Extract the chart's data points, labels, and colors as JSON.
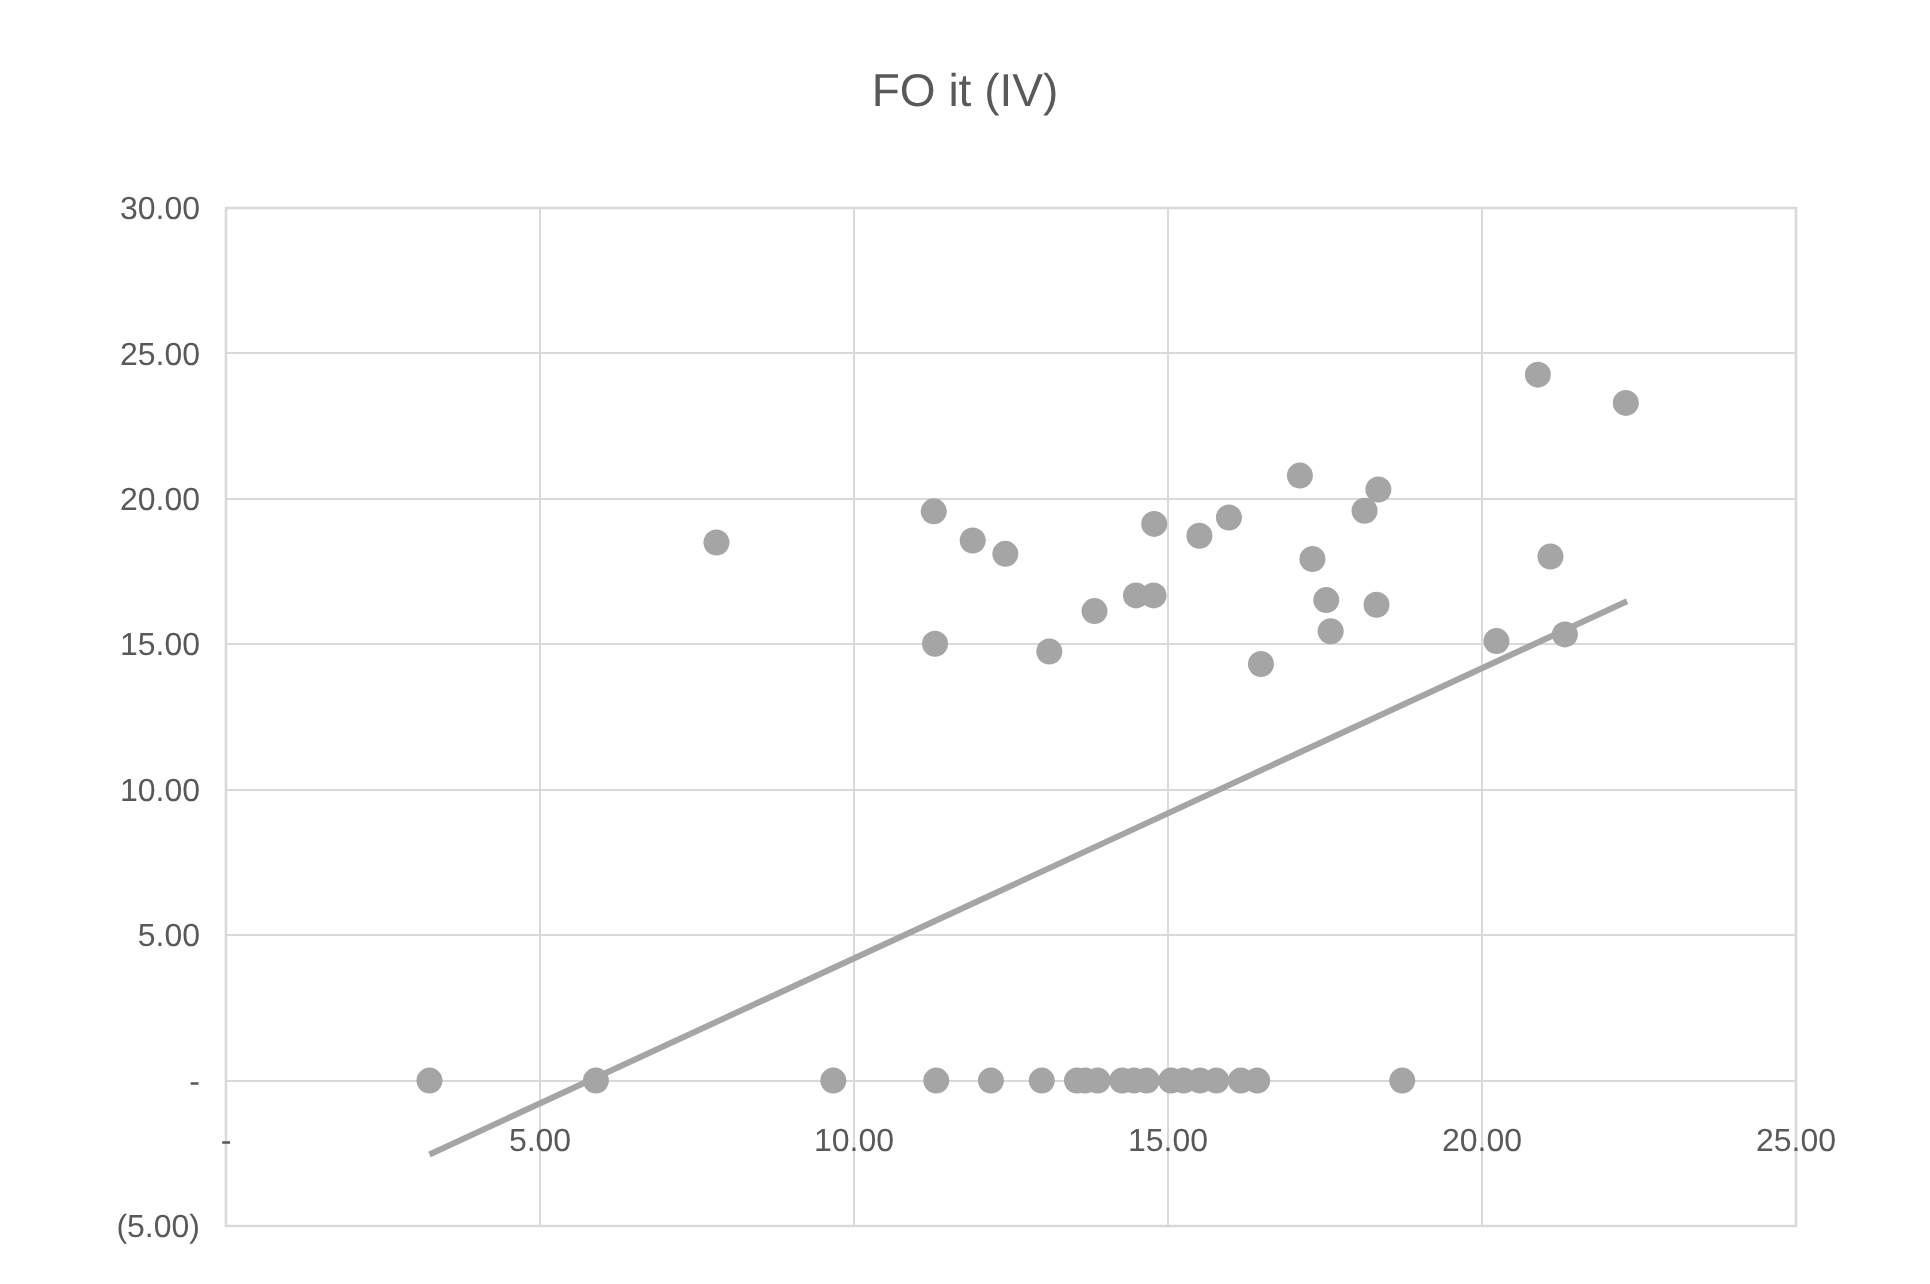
{
  "chart_data": {
    "type": "scatter",
    "title": "FO it (IV)",
    "xlim": [
      0,
      25
    ],
    "ylim": [
      -5,
      30
    ],
    "xticks": [
      {
        "value": 0,
        "label": "-"
      },
      {
        "value": 5,
        "label": "5.00"
      },
      {
        "value": 10,
        "label": "10.00"
      },
      {
        "value": 15,
        "label": "15.00"
      },
      {
        "value": 20,
        "label": "20.00"
      },
      {
        "value": 25,
        "label": "25.00"
      }
    ],
    "yticks": [
      {
        "value": -5,
        "label": "(5.00)"
      },
      {
        "value": 0,
        "label": "-"
      },
      {
        "value": 5,
        "label": "5.00"
      },
      {
        "value": 10,
        "label": "10.00"
      },
      {
        "value": 15,
        "label": "15.00"
      },
      {
        "value": 20,
        "label": "20.00"
      },
      {
        "value": 25,
        "label": "25.00"
      },
      {
        "value": 30,
        "label": "30.00"
      }
    ],
    "grid": true,
    "marker": "circle",
    "series": [
      {
        "color": "#a5a5a5",
        "x": [
          3.24,
          5.89,
          9.67,
          11.31,
          12.18,
          12.99,
          13.55,
          13.68,
          13.88,
          14.27,
          14.46,
          14.66,
          15.05,
          15.25,
          15.51,
          15.77,
          16.16,
          16.42,
          18.73,
          7.81,
          11.27,
          11.89,
          12.41,
          11.29,
          13.11,
          13.83,
          14.49,
          14.77,
          14.78,
          15.5,
          15.97,
          17.1,
          18.35,
          18.13,
          17.3,
          17.52,
          18.32,
          17.59,
          16.48,
          20.89,
          22.29,
          21.09,
          20.23,
          21.32
        ],
        "values": [
          0,
          0,
          0,
          0,
          0,
          0,
          0,
          0,
          0,
          0,
          0,
          0,
          0,
          0,
          0,
          0,
          0,
          0,
          0,
          18.5,
          19.57,
          18.57,
          18.11,
          15.02,
          14.75,
          16.14,
          16.68,
          16.68,
          19.14,
          18.73,
          19.36,
          20.8,
          20.32,
          19.59,
          17.93,
          16.52,
          16.36,
          15.45,
          14.32,
          24.27,
          23.3,
          18.02,
          15.11,
          15.34
        ]
      },
      {
        "type": "line",
        "color": "#a5a5a5",
        "x": [
          3.24,
          22.31
        ],
        "values": [
          -2.54,
          16.48
        ],
        "line_style": "solid",
        "marker": "none"
      }
    ]
  }
}
